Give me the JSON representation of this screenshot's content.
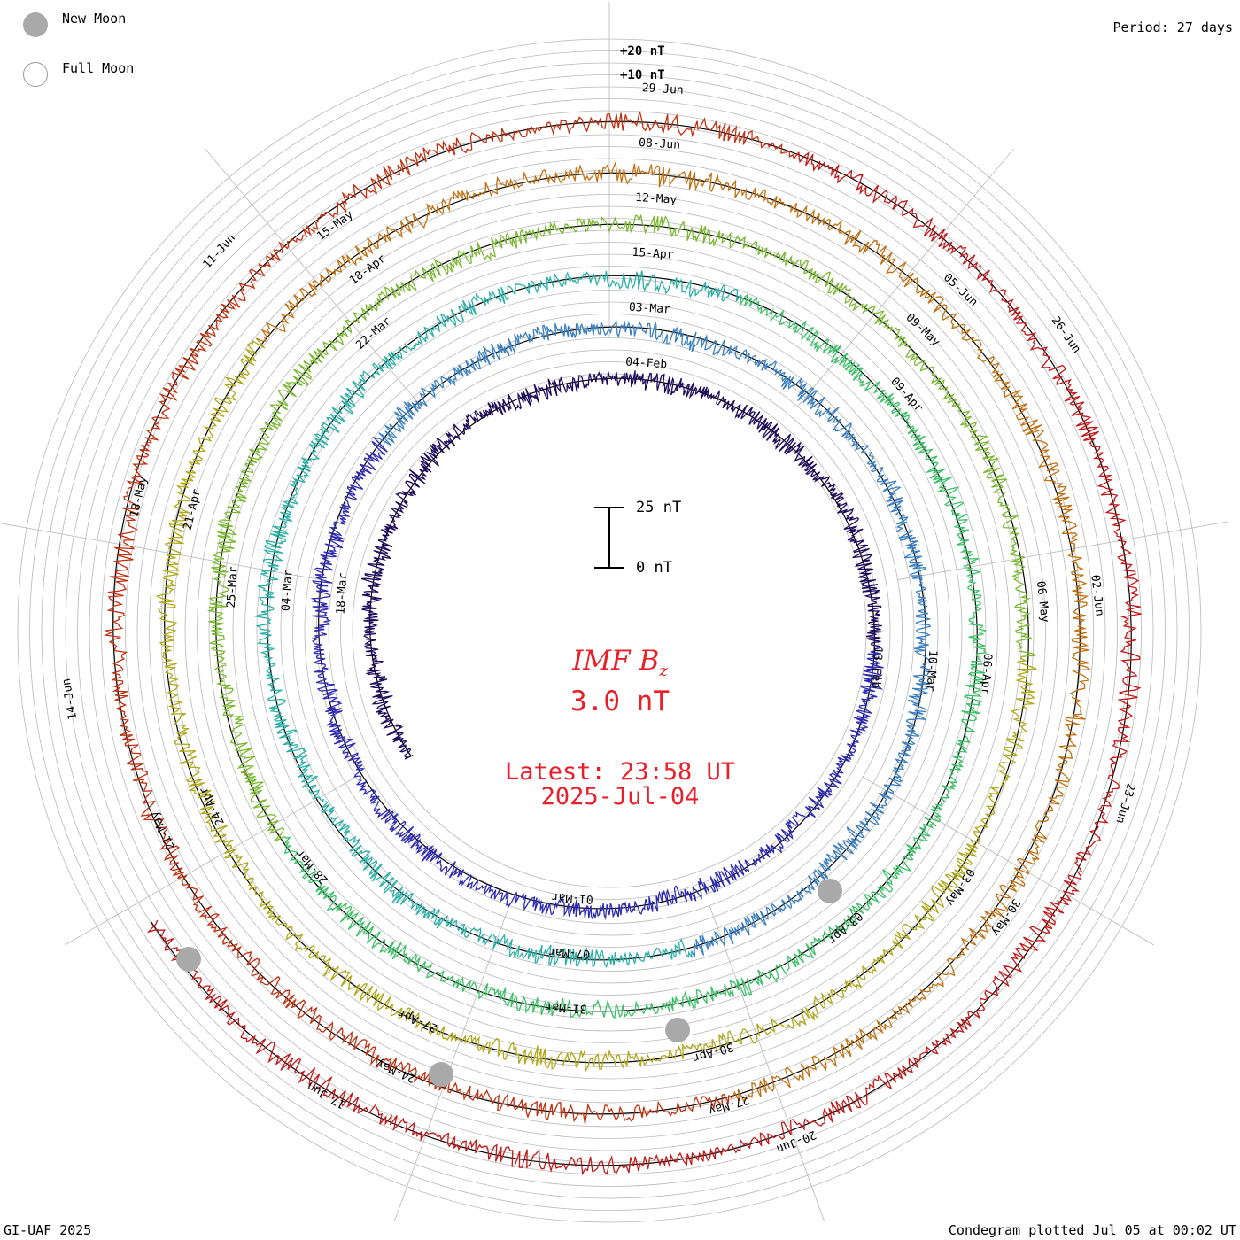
{
  "header": {
    "period": "Period: 27 days"
  },
  "legend": {
    "new_moon": "New Moon",
    "full_moon": "Full Moon"
  },
  "footer": {
    "left": "GI-UAF 2025",
    "right": "Condegram plotted Jul 05 at 00:02 UT"
  },
  "center": {
    "title_main": "IMF B",
    "title_sub": "z",
    "value": "3.0 nT",
    "latest_line1": "Latest: 23:58 UT",
    "latest_line2": "2025-Jul-04"
  },
  "scale": {
    "top_label": "25 nT",
    "bottom_label": "0 nT"
  },
  "colors": {
    "rings": [
      "#1c0a5a",
      "#2e2ab0",
      "#3a7fc0",
      "#2ab0a8",
      "#3ac065",
      "#7ab830",
      "#b0a818",
      "#c07010",
      "#c03010",
      "#c01818"
    ],
    "moon_marker": "#a9a9a9",
    "center_text": "#e8202a",
    "grid": "#b8b8b8"
  },
  "chart_data": {
    "type": "condegram",
    "title": "IMF Bz",
    "current_value_nT": 3.0,
    "period_days": 27,
    "unit": "nT",
    "ring_labels": [
      "+20 nT",
      "+10 nT"
    ],
    "rings": [
      {
        "name": "ring-1",
        "date_labels": [
          "04-Feb",
          "13-Feb",
          "01-Mar",
          "18-Mar"
        ]
      },
      {
        "name": "ring-2",
        "date_labels": [
          "03-Mar",
          "10-Mar",
          "07-Mar",
          "04-Mar"
        ]
      },
      {
        "name": "ring-3",
        "date_labels": [
          "15-Apr",
          "09-Apr",
          "06-Apr",
          "03-Apr",
          "31-Mar",
          "28-Mar",
          "25-Mar",
          "22-Mar"
        ]
      },
      {
        "name": "ring-4",
        "date_labels": [
          "12-May",
          "09-May",
          "06-May",
          "03-May",
          "30-Apr",
          "27-Apr",
          "24-Apr",
          "21-Apr",
          "18-Apr"
        ]
      },
      {
        "name": "ring-5",
        "date_labels": [
          "08-Jun",
          "05-Jun",
          "02-Jun",
          "30-May",
          "27-May",
          "24-May",
          "21-May",
          "18-May",
          "15-May"
        ]
      },
      {
        "name": "ring-6",
        "date_labels": [
          "29-Jun",
          "26-Jun",
          "23-Jun",
          "20-Jun",
          "17-Jun",
          "14-Jun",
          "11-Jun"
        ]
      }
    ]
  }
}
